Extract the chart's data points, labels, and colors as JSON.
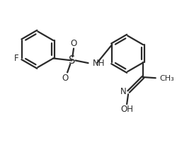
{
  "background_color": "#ffffff",
  "line_color": "#2a2a2a",
  "text_color": "#2a2a2a",
  "line_width": 1.6,
  "font_size": 8.5,
  "figsize": [
    2.5,
    2.12
  ],
  "dpi": 100,
  "xlim": [
    0,
    10
  ],
  "ylim": [
    0,
    8.5
  ]
}
